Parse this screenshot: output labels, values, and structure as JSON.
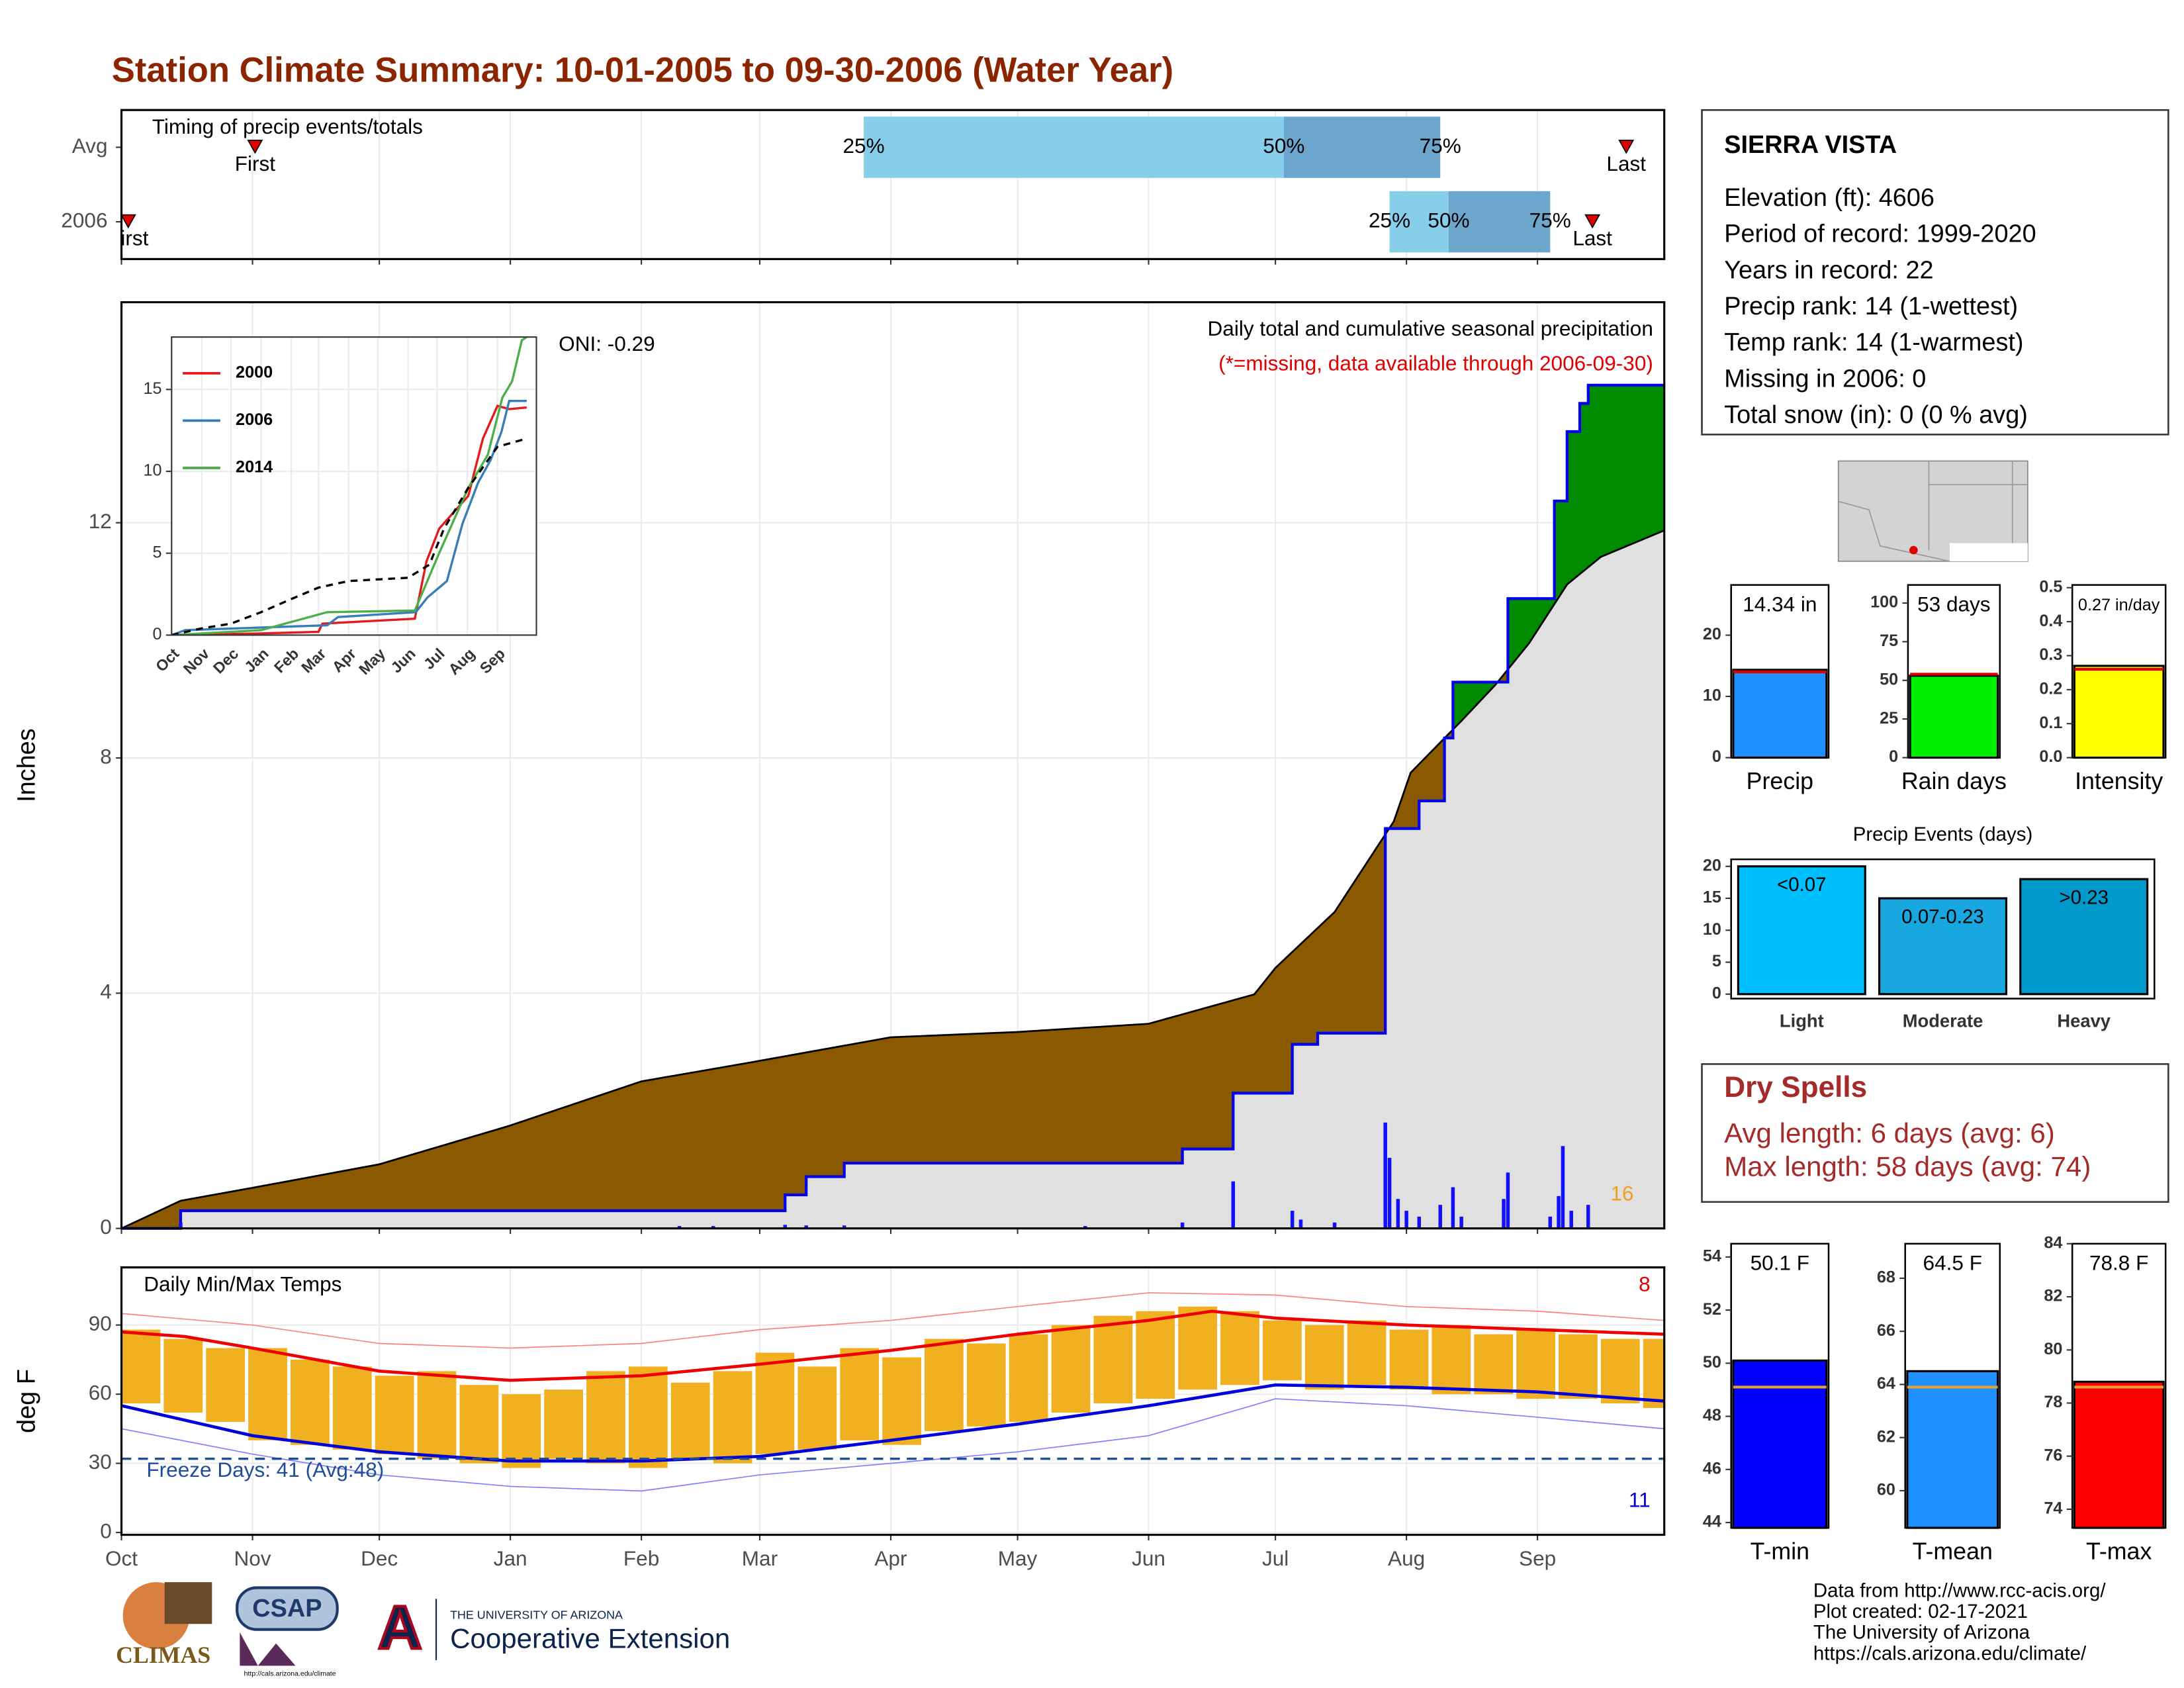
{
  "title": "Station Climate Summary: 10-01-2005 to 09-30-2006 (Water Year)",
  "station": {
    "name": "SIERRA VISTA",
    "lines": [
      "Elevation (ft): 4606",
      "Period of record: 1999-2020",
      "Years in record: 22",
      "Precip rank: 14 (1-wettest)",
      "Temp rank: 14 (1-warmest)",
      "Missing in 2006: 0",
      "Total snow (in): 0 (0 % avg)"
    ]
  },
  "dry_spells": {
    "title": "Dry Spells",
    "lines": [
      "Avg length: 6 days (avg: 6)",
      "Max length: 58 days (avg: 74)"
    ]
  },
  "logos": {
    "climas": "CLIMAS",
    "csap": "CSAP",
    "csap_url": "http://cals.arizona.edu/climate",
    "ua_small": "THE UNIVERSITY OF ARIZONA",
    "ua": "Cooperative Extension"
  },
  "footer": [
    "Data from http://www.rcc-acis.org/",
    "Plot created: 02-17-2021",
    "The University of Arizona",
    "https://cals.arizona.edu/climate/"
  ],
  "chart_data": [
    {
      "type": "timeline",
      "title": "Timing of precip events/totals",
      "xlim": [
        0,
        365
      ],
      "xticks": [
        0,
        31,
        61,
        92,
        123,
        151,
        182,
        212,
        243,
        273,
        304,
        335
      ],
      "labels": {
        "first": "First",
        "last": "Last",
        "p25": "25%",
        "p50": "50%",
        "p75": "75%"
      },
      "colors": {
        "low": "#87ceeb",
        "high": "#6ca6cd",
        "marker": "#e00000"
      },
      "rows": [
        {
          "name": "Avg",
          "first": 31.6,
          "p25": 175.6,
          "p50": 275,
          "p75": 312,
          "last": 356
        },
        {
          "name": "2006",
          "first": 1.6,
          "p25": 300,
          "p50": 314,
          "p75": 338,
          "last": 348
        }
      ]
    },
    {
      "type": "area",
      "subtitle": "Daily total and cumulative seasonal precipitation",
      "note": "(*=missing, data available through 2006-09-30)",
      "oni": "ONI: -0.29",
      "ylabel": "Inches",
      "annotation": "16",
      "xlim": [
        0,
        365
      ],
      "xticks": [
        0,
        31,
        61,
        92,
        123,
        151,
        182,
        212,
        243,
        273,
        304,
        335
      ],
      "ylim": [
        0,
        15.75
      ],
      "yticks": [
        0,
        4,
        8,
        12
      ],
      "grid": true,
      "colors": {
        "below": "#8b5a00",
        "above": "#008b00",
        "common": "#e0e0e0"
      },
      "series": [
        {
          "color": "#000000",
          "x": [
            0,
            14,
            31,
            61,
            92,
            123,
            151,
            182,
            212,
            243,
            268,
            273,
            287,
            301,
            305,
            317,
            325,
            333,
            342,
            350,
            365
          ],
          "values": [
            0,
            0.47,
            0.69,
            1.09,
            1.75,
            2.5,
            2.85,
            3.25,
            3.34,
            3.48,
            3.98,
            4.43,
            5.38,
            6.92,
            7.75,
            8.63,
            9.24,
            9.95,
            10.95,
            11.42,
            11.87
          ]
        },
        {
          "color": "#0000ee",
          "x": [
            0,
            14,
            14,
            157,
            157,
            162,
            162,
            171,
            171,
            251,
            251,
            263,
            263,
            277,
            277,
            283,
            283,
            299,
            299,
            307,
            307,
            313,
            313,
            315,
            315,
            328,
            328,
            339,
            339,
            342,
            342,
            345,
            345,
            347,
            347,
            365
          ],
          "values": [
            0,
            0,
            0.3,
            0.3,
            0.57,
            0.57,
            0.88,
            0.88,
            1.11,
            1.11,
            1.35,
            1.35,
            2.3,
            2.3,
            3.13,
            3.13,
            3.32,
            3.32,
            6.8,
            6.8,
            7.27,
            7.27,
            8.34,
            8.34,
            9.29,
            9.29,
            10.71,
            10.71,
            12.37,
            12.37,
            13.55,
            13.55,
            14.03,
            14.03,
            14.34,
            14.34
          ]
        }
      ],
      "daily": {
        "color": "#1010ff",
        "x": [
          14,
          132,
          140,
          157,
          162,
          171,
          228,
          251,
          263,
          277,
          279,
          287,
          299,
          300,
          302,
          304,
          307,
          312,
          315,
          317,
          327,
          328,
          338,
          340,
          341,
          343,
          347
        ],
        "values": [
          0.1,
          0.04,
          0.04,
          0.06,
          0.05,
          0.05,
          0.04,
          0.1,
          0.8,
          0.3,
          0.15,
          0.1,
          1.8,
          1.2,
          0.5,
          0.3,
          0.2,
          0.4,
          0.7,
          0.2,
          0.5,
          0.95,
          0.2,
          0.55,
          1.4,
          0.3,
          0.4
        ]
      }
    },
    {
      "type": "line",
      "xlim": [
        0,
        375
      ],
      "ylim": [
        0,
        18.2
      ],
      "yticks": [
        0,
        5,
        10,
        15
      ],
      "grid": true,
      "xticks": [
        {
          "value": 0,
          "label": "Oct"
        },
        {
          "value": 31,
          "label": "Nov"
        },
        {
          "value": 61,
          "label": "Dec"
        },
        {
          "value": 92,
          "label": "Jan"
        },
        {
          "value": 123,
          "label": "Feb"
        },
        {
          "value": 151,
          "label": "Mar"
        },
        {
          "value": 182,
          "label": "Apr"
        },
        {
          "value": 212,
          "label": "May"
        },
        {
          "value": 243,
          "label": "Jun"
        },
        {
          "value": 273,
          "label": "Jul"
        },
        {
          "value": 304,
          "label": "Aug"
        },
        {
          "value": 335,
          "label": "Sep"
        }
      ],
      "series": [
        {
          "name": "2000",
          "color": "#e41a1c",
          "x": [
            0,
            92,
            151,
            155,
            250,
            262,
            275,
            290,
            305,
            320,
            335,
            347,
            365
          ],
          "values": [
            0,
            0.1,
            0.2,
            0.7,
            1.0,
            4.5,
            6.5,
            7.5,
            8.5,
            12,
            14,
            13.8,
            13.9
          ]
        },
        {
          "name": "2006",
          "color": "#377eb8",
          "x": [
            0,
            14,
            160,
            171,
            251,
            263,
            283,
            299,
            315,
            328,
            339,
            347,
            365
          ],
          "values": [
            0,
            0.3,
            0.6,
            1.1,
            1.4,
            2.3,
            3.3,
            6.8,
            9.3,
            10.7,
            12.4,
            14.3,
            14.3
          ]
        },
        {
          "name": "2014",
          "color": "#4daf4a",
          "x": [
            0,
            92,
            160,
            250,
            275,
            290,
            305,
            325,
            340,
            350,
            360,
            365
          ],
          "values": [
            0,
            0.3,
            1.4,
            1.5,
            5,
            7,
            9,
            11,
            14.5,
            15.5,
            18,
            18.2
          ]
        },
        {
          "color": "#000000",
          "dashed": true,
          "x": [
            0,
            30,
            61,
            92,
            123,
            151,
            182,
            212,
            243,
            265,
            280,
            305,
            335,
            365
          ],
          "values": [
            0,
            0.4,
            0.7,
            1.4,
            2.2,
            2.9,
            3.3,
            3.4,
            3.5,
            4.3,
            6.5,
            9,
            11.5,
            12
          ]
        }
      ]
    },
    {
      "type": "range",
      "title": "Daily Min/Max Temps",
      "ylabel": "deg F",
      "freeze_label": "Freeze Days: 41 (Avg:48)",
      "freeze_line": 32,
      "freeze_color": "#1f4e99",
      "annotations": [
        {
          "text": "8",
          "color": "#e00000"
        },
        {
          "text": "11",
          "color": "#0000cc"
        }
      ],
      "xlim": [
        0,
        365
      ],
      "ylim": [
        -1,
        115
      ],
      "yticks": [
        0,
        30,
        60,
        90
      ],
      "grid": true,
      "color": "#f0b020",
      "xticks": [
        {
          "value": 0,
          "label": "Oct"
        },
        {
          "value": 31,
          "label": "Nov"
        },
        {
          "value": 61,
          "label": "Dec"
        },
        {
          "value": 92,
          "label": "Jan"
        },
        {
          "value": 123,
          "label": "Feb"
        },
        {
          "value": 151,
          "label": "Mar"
        },
        {
          "value": 182,
          "label": "Apr"
        },
        {
          "value": 212,
          "label": "May"
        },
        {
          "value": 243,
          "label": "Jun"
        },
        {
          "value": 273,
          "label": "Jul"
        },
        {
          "value": 304,
          "label": "Aug"
        },
        {
          "value": 335,
          "label": "Sep"
        }
      ],
      "x": [
        0,
        10,
        20,
        30,
        40,
        50,
        60,
        70,
        80,
        90,
        100,
        110,
        120,
        130,
        140,
        150,
        160,
        170,
        180,
        190,
        200,
        210,
        220,
        230,
        240,
        250,
        260,
        270,
        280,
        290,
        300,
        310,
        320,
        330,
        340,
        350,
        360
      ],
      "max": [
        88,
        84,
        80,
        80,
        75,
        72,
        68,
        70,
        64,
        60,
        62,
        70,
        72,
        65,
        70,
        78,
        72,
        80,
        76,
        84,
        82,
        86,
        90,
        94,
        96,
        98,
        96,
        92,
        90,
        92,
        88,
        90,
        86,
        88,
        86,
        84,
        84
      ],
      "min": [
        56,
        52,
        48,
        40,
        38,
        36,
        34,
        32,
        30,
        28,
        32,
        30,
        28,
        32,
        30,
        34,
        36,
        40,
        38,
        44,
        46,
        48,
        52,
        56,
        58,
        62,
        64,
        66,
        62,
        64,
        62,
        60,
        60,
        58,
        58,
        56,
        54
      ],
      "lines": [
        {
          "color": "#ff8080",
          "x": [
            0,
            31,
            61,
            92,
            123,
            151,
            182,
            212,
            243,
            273,
            304,
            335,
            365
          ],
          "values": [
            95,
            90,
            82,
            80,
            82,
            88,
            92,
            98,
            104,
            103,
            98,
            96,
            92
          ]
        },
        {
          "color": "#8080ff",
          "x": [
            0,
            31,
            61,
            92,
            123,
            151,
            182,
            212,
            243,
            273,
            304,
            335,
            365
          ],
          "values": [
            45,
            34,
            25,
            20,
            18,
            25,
            30,
            35,
            42,
            58,
            55,
            50,
            45
          ]
        },
        {
          "color": "#ee0000",
          "x": [
            0,
            15,
            31,
            61,
            92,
            123,
            151,
            182,
            212,
            243,
            258,
            273,
            304,
            335,
            365
          ],
          "values": [
            87,
            85,
            80,
            70,
            66,
            68,
            73,
            79,
            86,
            92,
            96,
            93,
            90,
            88,
            86
          ]
        },
        {
          "color": "#0000dd",
          "x": [
            0,
            31,
            61,
            92,
            123,
            151,
            182,
            212,
            243,
            273,
            304,
            335,
            365
          ],
          "values": [
            55,
            42,
            35,
            31,
            31,
            33,
            40,
            47,
            55,
            64,
            63,
            61,
            57
          ]
        }
      ]
    },
    {
      "type": "bar",
      "categories": [
        "Precip"
      ],
      "values": [
        14.34
      ],
      "value_labels": [
        "14.34 in"
      ],
      "colors": [
        "#1e90ff"
      ],
      "avg": 14.0,
      "avg_color": "#e00000",
      "ylim": [
        0,
        28.2
      ],
      "yticks": [
        0,
        10,
        20
      ]
    },
    {
      "type": "bar",
      "categories": [
        "Rain days"
      ],
      "values": [
        53
      ],
      "value_labels": [
        "53 days"
      ],
      "colors": [
        "#00ee00"
      ],
      "avg": 54,
      "avg_color": "#e00000",
      "ylim": [
        0,
        111.7
      ],
      "yticks": [
        0,
        25,
        50,
        75,
        100
      ]
    },
    {
      "type": "bar",
      "categories": [
        "Intensity"
      ],
      "values": [
        0.27
      ],
      "value_labels": [
        "0.27 in/day"
      ],
      "colors": [
        "#ffff00"
      ],
      "avg": 0.26,
      "avg_color": "#e00000",
      "ylim": [
        0,
        0.508
      ],
      "yticks": [
        {
          "value": 0,
          "label": "0.0"
        },
        0.1,
        0.2,
        0.3,
        0.4,
        0.5
      ]
    },
    {
      "type": "bar",
      "title": "Precip Events (days)",
      "categories": [
        "Light",
        "Moderate",
        "Heavy"
      ],
      "values": [
        20,
        15,
        18
      ],
      "value_labels": [
        "<0.07",
        "0.07-0.23",
        ">0.23"
      ],
      "colors": [
        "#00bfff",
        "#19a7e0",
        "#0099cc"
      ],
      "ylim": [
        -0.7,
        21.1
      ],
      "yticks": [
        0,
        5,
        10,
        15,
        20
      ]
    },
    {
      "type": "bar",
      "categories": [
        "T-min"
      ],
      "values": [
        50.1
      ],
      "value_labels": [
        "50.1 F"
      ],
      "colors": [
        "#0000ff"
      ],
      "avg": 49.1,
      "avg_color": "#e8a030",
      "ylim": [
        43.8,
        54.5
      ],
      "yticks": [
        44,
        46,
        48,
        50,
        52,
        54
      ]
    },
    {
      "type": "bar",
      "categories": [
        "T-mean"
      ],
      "values": [
        64.5
      ],
      "value_labels": [
        "64.5 F"
      ],
      "colors": [
        "#1e90ff"
      ],
      "avg": 63.9,
      "avg_color": "#e8a030",
      "ylim": [
        58.6,
        69.3
      ],
      "yticks": [
        60,
        62,
        64,
        66,
        68
      ]
    },
    {
      "type": "bar",
      "categories": [
        "T-max"
      ],
      "values": [
        78.8
      ],
      "value_labels": [
        "78.8 F"
      ],
      "colors": [
        "#ff0000"
      ],
      "avg": 78.6,
      "avg_color": "#e8a030",
      "ylim": [
        73.3,
        84
      ],
      "yticks": [
        74,
        76,
        78,
        80,
        82,
        84
      ]
    }
  ]
}
